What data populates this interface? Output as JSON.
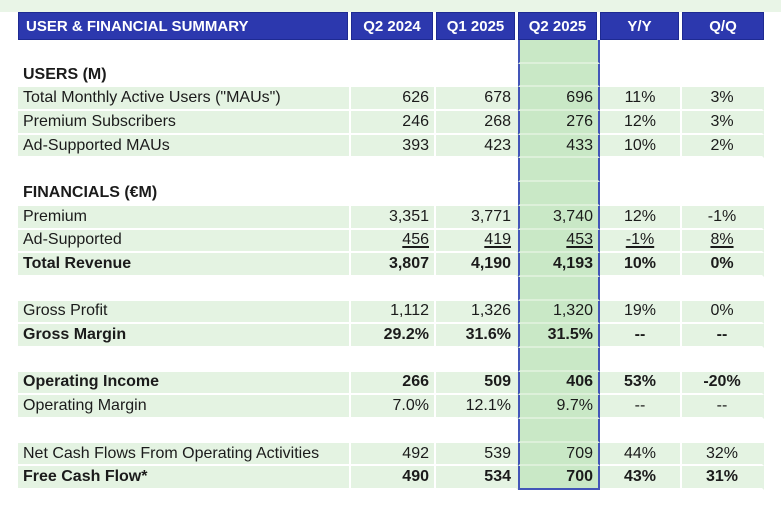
{
  "title": "USER & FINANCIAL SUMMARY",
  "columns": [
    "Q2 2024",
    "Q1 2025",
    "Q2 2025",
    "Y/Y",
    "Q/Q"
  ],
  "highlighted_column": "Q2 2025",
  "rows": [
    {
      "type": "spacer",
      "label": "",
      "values": [
        "",
        "",
        "",
        "",
        ""
      ]
    },
    {
      "type": "section",
      "label": "USERS (M)",
      "values": [
        "",
        "",
        "",
        "",
        ""
      ]
    },
    {
      "type": "data",
      "style": "regular",
      "label": "Total Monthly Active Users (\"MAUs\")",
      "values": [
        "626",
        "678",
        "696",
        "11%",
        "3%"
      ]
    },
    {
      "type": "data",
      "style": "regular",
      "label": "Premium Subscribers",
      "values": [
        "246",
        "268",
        "276",
        "12%",
        "3%"
      ]
    },
    {
      "type": "data",
      "style": "regular",
      "label": "Ad-Supported MAUs",
      "values": [
        "393",
        "423",
        "433",
        "10%",
        "2%"
      ]
    },
    {
      "type": "spacer",
      "label": "",
      "values": [
        "",
        "",
        "",
        "",
        ""
      ]
    },
    {
      "type": "section",
      "label": "FINANCIALS (€M)",
      "values": [
        "",
        "",
        "",
        "",
        ""
      ]
    },
    {
      "type": "data",
      "style": "regular",
      "label": "Premium",
      "values": [
        "3,351",
        "3,771",
        "3,740",
        "12%",
        "-1%"
      ]
    },
    {
      "type": "data",
      "style": "underline",
      "label": "Ad-Supported",
      "values": [
        "456",
        "419",
        "453",
        "-1%",
        "8%"
      ]
    },
    {
      "type": "data",
      "style": "bold",
      "label": "Total Revenue",
      "values": [
        "3,807",
        "4,190",
        "4,193",
        "10%",
        "0%"
      ]
    },
    {
      "type": "spacer",
      "label": "",
      "values": [
        "",
        "",
        "",
        "",
        ""
      ]
    },
    {
      "type": "data",
      "style": "regular",
      "label": "Gross Profit",
      "values": [
        "1,112",
        "1,326",
        "1,320",
        "19%",
        "0%"
      ]
    },
    {
      "type": "data",
      "style": "bold",
      "label": "Gross Margin",
      "values": [
        "29.2%",
        "31.6%",
        "31.5%",
        "--",
        "--"
      ]
    },
    {
      "type": "spacer",
      "label": "",
      "values": [
        "",
        "",
        "",
        "",
        ""
      ]
    },
    {
      "type": "data",
      "style": "bold",
      "label": "Operating Income",
      "values": [
        "266",
        "509",
        "406",
        "53%",
        "-20%"
      ]
    },
    {
      "type": "data",
      "style": "regular",
      "label": "Operating Margin",
      "values": [
        "7.0%",
        "12.1%",
        "9.7%",
        "--",
        "--"
      ]
    },
    {
      "type": "spacer",
      "label": "",
      "values": [
        "",
        "",
        "",
        "",
        ""
      ]
    },
    {
      "type": "data",
      "style": "regular",
      "label": "Net Cash Flows From Operating Activities",
      "values": [
        "492",
        "539",
        "709",
        "44%",
        "32%"
      ]
    },
    {
      "type": "data",
      "style": "bold",
      "label": "Free Cash Flow*",
      "values": [
        "490",
        "534",
        "700",
        "43%",
        "31%"
      ]
    }
  ],
  "colors": {
    "header_bg": "#2c38ae",
    "header_edge": "#1e2a92",
    "header_text": "#ffffff",
    "stripe_green": "#e4f3e2",
    "highlight_green": "#c9e8c6",
    "highlight_grid": "#ddf0da",
    "highlight_border": "#4355b8",
    "top_band_green": "#e9f5e7",
    "grid_white": "#ffffff",
    "text": "#1b1b1b"
  }
}
